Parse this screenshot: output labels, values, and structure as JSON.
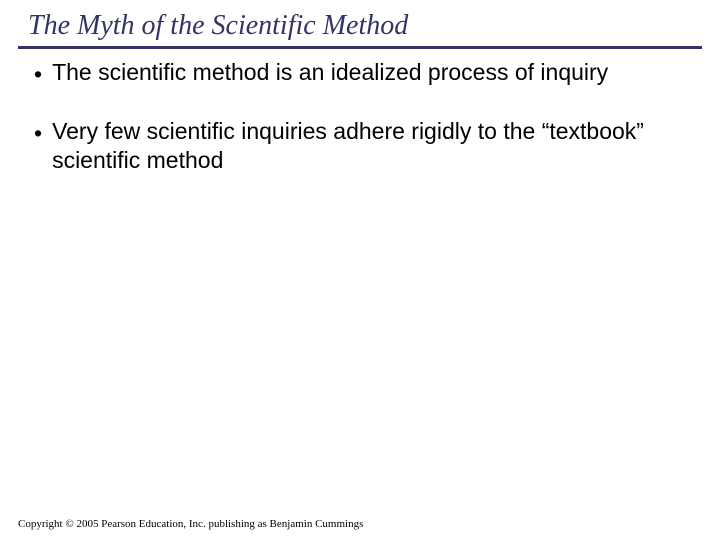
{
  "colors": {
    "title_color": "#333366",
    "rule_color": "#333366",
    "body_text_color": "#000000",
    "background": "#ffffff"
  },
  "typography": {
    "title_font": "Times New Roman",
    "title_style": "italic",
    "title_fontsize_pt": 28,
    "body_font": "Arial",
    "body_fontsize_pt": 23,
    "footer_font": "Times New Roman",
    "footer_fontsize_pt": 11
  },
  "title": "The Myth of the Scientific Method",
  "bullets": [
    "The scientific method is an idealized process of inquiry",
    "Very few scientific inquiries adhere rigidly to the “textbook” scientific method"
  ],
  "footer": "Copyright © 2005 Pearson Education, Inc. publishing as Benjamin Cummings"
}
